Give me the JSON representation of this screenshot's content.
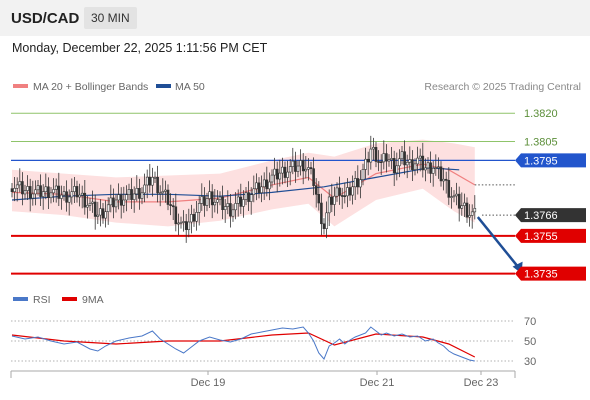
{
  "header": {
    "symbol": "USD/CAD",
    "timeframe": "30 MIN",
    "datetime": "Monday, December 22, 2025 1:11:56 PM CET"
  },
  "legend": {
    "items": [
      {
        "label": "MA 20 + Bollinger Bands",
        "color": "#f08080"
      },
      {
        "label": "MA 50",
        "color": "#1f4e96"
      }
    ],
    "credit": "Research © 2025 Trading Central"
  },
  "rsi_legend": {
    "items": [
      {
        "label": "RSI",
        "color": "#4a78c8"
      },
      {
        "label": "9MA",
        "color": "#e00000"
      }
    ]
  },
  "colors": {
    "resistance_green": "#8fc46a",
    "pivot_blue": "#2255cc",
    "support_red": "#e00000",
    "last_price_tag": "#333333",
    "bollinger_fill": "#fde0e0",
    "arrow": "#1f4e96"
  },
  "chart_data": [
    {
      "type": "candlestick",
      "title": "USD/CAD",
      "ylim": [
        1.373,
        1.3827
      ],
      "x_ticks": [
        "Dec 19",
        "Dec 21",
        "Dec 23"
      ],
      "levels": [
        {
          "label": "1.3820",
          "value": 1.382,
          "style": "green-line"
        },
        {
          "label": "1.3805",
          "value": 1.3805,
          "style": "green-line"
        },
        {
          "label": "1.3795",
          "value": 1.3795,
          "style": "blue-tag"
        },
        {
          "label": "1.3766",
          "value": 1.3766,
          "style": "last-price-tag"
        },
        {
          "label": "1.3755",
          "value": 1.3755,
          "style": "red-tag"
        },
        {
          "label": "1.3735",
          "value": 1.3735,
          "style": "red-tag"
        }
      ],
      "close_path": [
        [
          0,
          1.3782
        ],
        [
          5,
          1.3779
        ],
        [
          10,
          1.3778
        ],
        [
          15,
          1.3779
        ],
        [
          20,
          1.3776
        ],
        [
          25,
          1.3778
        ],
        [
          30,
          1.3771
        ],
        [
          33,
          1.3766
        ],
        [
          36,
          1.3769
        ],
        [
          40,
          1.3774
        ],
        [
          45,
          1.3776
        ],
        [
          50,
          1.3779
        ],
        [
          54,
          1.3786
        ],
        [
          57,
          1.3779
        ],
        [
          60,
          1.3774
        ],
        [
          63,
          1.3765
        ],
        [
          66,
          1.3759
        ],
        [
          69,
          1.3764
        ],
        [
          72,
          1.3771
        ],
        [
          76,
          1.3776
        ],
        [
          80,
          1.3772
        ],
        [
          84,
          1.3769
        ],
        [
          88,
          1.3773
        ],
        [
          92,
          1.3778
        ],
        [
          96,
          1.3781
        ],
        [
          100,
          1.3786
        ],
        [
          104,
          1.3789
        ],
        [
          108,
          1.3791
        ],
        [
          112,
          1.3793
        ],
        [
          114,
          1.379
        ],
        [
          116,
          1.3784
        ],
        [
          118,
          1.377
        ],
        [
          120,
          1.376
        ],
        [
          122,
          1.3772
        ],
        [
          124,
          1.3776
        ],
        [
          126,
          1.378
        ],
        [
          128,
          1.3775
        ],
        [
          130,
          1.3779
        ],
        [
          132,
          1.3783
        ],
        [
          134,
          1.3786
        ],
        [
          136,
          1.3792
        ],
        [
          138,
          1.3801
        ],
        [
          140,
          1.3798
        ],
        [
          142,
          1.3793
        ],
        [
          144,
          1.3797
        ],
        [
          147,
          1.3792
        ],
        [
          150,
          1.3796
        ],
        [
          153,
          1.3793
        ],
        [
          156,
          1.3795
        ],
        [
          159,
          1.3791
        ],
        [
          162,
          1.3792
        ],
        [
          164,
          1.3788
        ],
        [
          166,
          1.3785
        ],
        [
          168,
          1.3779
        ],
        [
          170,
          1.3775
        ],
        [
          172,
          1.3772
        ],
        [
          174,
          1.377
        ],
        [
          176,
          1.3767
        ],
        [
          178,
          1.3766
        ]
      ],
      "ma50_path": [
        [
          0,
          1.3774
        ],
        [
          20,
          1.3776
        ],
        [
          40,
          1.3777
        ],
        [
          60,
          1.3777
        ],
        [
          80,
          1.3776
        ],
        [
          100,
          1.3778
        ],
        [
          120,
          1.3781
        ],
        [
          140,
          1.3786
        ],
        [
          160,
          1.3791
        ],
        [
          172,
          1.379
        ]
      ],
      "ma20_path": [
        [
          0,
          1.3778
        ],
        [
          20,
          1.3777
        ],
        [
          40,
          1.3773
        ],
        [
          60,
          1.3773
        ],
        [
          80,
          1.3775
        ],
        [
          100,
          1.3782
        ],
        [
          114,
          1.3786
        ],
        [
          124,
          1.3775
        ],
        [
          140,
          1.3788
        ],
        [
          158,
          1.3793
        ],
        [
          168,
          1.379
        ],
        [
          178,
          1.3782
        ]
      ],
      "bollinger_band": {
        "upper": [
          [
            0,
            1.379
          ],
          [
            20,
            1.3788
          ],
          [
            40,
            1.3786
          ],
          [
            60,
            1.3787
          ],
          [
            80,
            1.3788
          ],
          [
            100,
            1.3795
          ],
          [
            114,
            1.3799
          ],
          [
            124,
            1.3797
          ],
          [
            140,
            1.3804
          ],
          [
            158,
            1.3806
          ],
          [
            170,
            1.3804
          ],
          [
            178,
            1.3802
          ]
        ],
        "lower": [
          [
            0,
            1.3768
          ],
          [
            20,
            1.3766
          ],
          [
            40,
            1.3762
          ],
          [
            60,
            1.376
          ],
          [
            80,
            1.3763
          ],
          [
            100,
            1.3769
          ],
          [
            114,
            1.3772
          ],
          [
            124,
            1.376
          ],
          [
            140,
            1.3774
          ],
          [
            158,
            1.378
          ],
          [
            170,
            1.3768
          ],
          [
            178,
            1.3762
          ]
        ]
      },
      "projection": {
        "from": [
          178,
          1.3766
        ],
        "to": [
          196,
          1.3735
        ]
      }
    },
    {
      "type": "line",
      "title": "RSI",
      "ylim": [
        20,
        80
      ],
      "y_ticks": [
        70,
        50,
        30
      ],
      "series": [
        {
          "name": "RSI",
          "values": [
            [
              0,
              55
            ],
            [
              5,
              52
            ],
            [
              10,
              54
            ],
            [
              15,
              50
            ],
            [
              20,
              47
            ],
            [
              25,
              49
            ],
            [
              30,
              42
            ],
            [
              33,
              40
            ],
            [
              36,
              45
            ],
            [
              40,
              50
            ],
            [
              45,
              53
            ],
            [
              50,
              55
            ],
            [
              54,
              60
            ],
            [
              57,
              52
            ],
            [
              60,
              47
            ],
            [
              63,
              42
            ],
            [
              66,
              38
            ],
            [
              69,
              44
            ],
            [
              72,
              50
            ],
            [
              76,
              54
            ],
            [
              80,
              51
            ],
            [
              84,
              49
            ],
            [
              88,
              52
            ],
            [
              92,
              57
            ],
            [
              96,
              59
            ],
            [
              100,
              61
            ],
            [
              104,
              63
            ],
            [
              108,
              62
            ],
            [
              112,
              64
            ],
            [
              114,
              58
            ],
            [
              116,
              50
            ],
            [
              118,
              38
            ],
            [
              120,
              32
            ],
            [
              122,
              45
            ],
            [
              124,
              48
            ],
            [
              126,
              52
            ],
            [
              128,
              47
            ],
            [
              130,
              51
            ],
            [
              132,
              54
            ],
            [
              134,
              56
            ],
            [
              136,
              58
            ],
            [
              138,
              64
            ],
            [
              140,
              60
            ],
            [
              142,
              56
            ],
            [
              144,
              58
            ],
            [
              147,
              55
            ],
            [
              150,
              57
            ],
            [
              153,
              54
            ],
            [
              156,
              55
            ],
            [
              159,
              50
            ],
            [
              162,
              52
            ],
            [
              164,
              48
            ],
            [
              166,
              45
            ],
            [
              168,
              40
            ],
            [
              170,
              37
            ],
            [
              172,
              35
            ],
            [
              174,
              33
            ],
            [
              176,
              31
            ],
            [
              178,
              30
            ]
          ]
        },
        {
          "name": "9MA",
          "values": [
            [
              0,
              56
            ],
            [
              20,
              50
            ],
            [
              40,
              47
            ],
            [
              60,
              50
            ],
            [
              80,
              50
            ],
            [
              100,
              56
            ],
            [
              114,
              58
            ],
            [
              124,
              46
            ],
            [
              140,
              57
            ],
            [
              158,
              54
            ],
            [
              168,
              47
            ],
            [
              178,
              34
            ]
          ]
        }
      ]
    }
  ]
}
